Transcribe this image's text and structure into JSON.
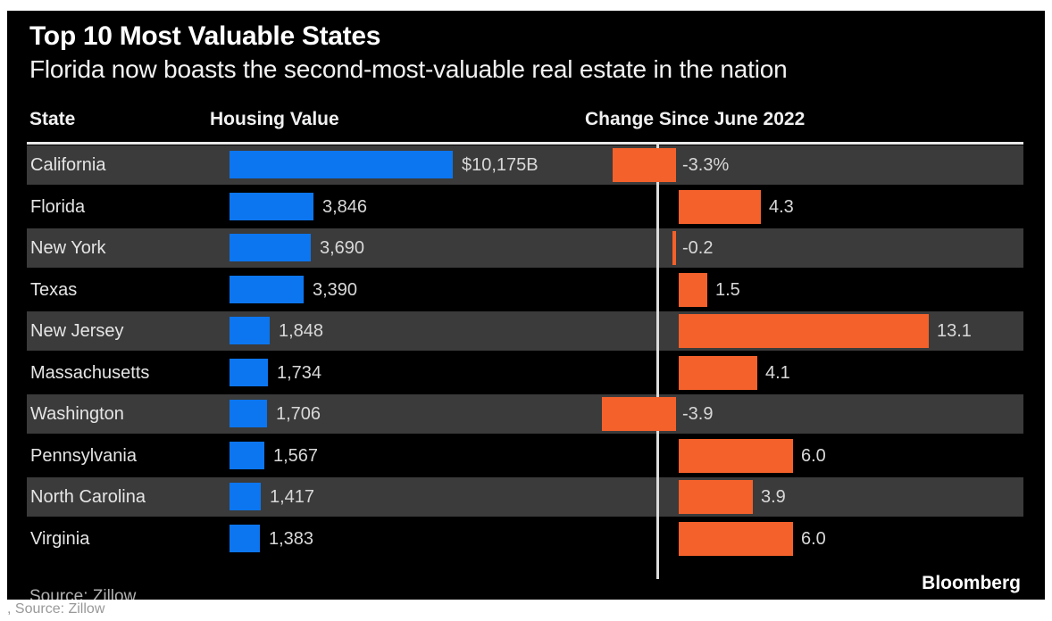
{
  "title": "Top 10 Most Valuable States",
  "subtitle": "Florida now boasts the second-most-valuable real estate in the nation",
  "columns": {
    "state": "State",
    "housing": "Housing Value",
    "change": "Change Since June 2022"
  },
  "source": "Source: Zillow",
  "brand": "Bloomberg",
  "caption": ", Source: Zillow",
  "colors": {
    "background": "#000000",
    "row_alt": "#3b3b3b",
    "housing_bar": "#0b76f0",
    "change_bar": "#f4612b",
    "separator": "#e8e8e8",
    "text": "#e5e5e5"
  },
  "chart_data": {
    "type": "bar",
    "orientation": "horizontal",
    "title": "Top 10 Most Valuable States",
    "subtitle": "Florida now boasts the second-most-valuable real estate in the nation",
    "categories": [
      "California",
      "Florida",
      "New York",
      "Texas",
      "New Jersey",
      "Massachusetts",
      "Washington",
      "Pennsylvania",
      "North Carolina",
      "Virginia"
    ],
    "series": [
      {
        "name": "Housing Value",
        "values": [
          10175,
          3846,
          3690,
          3390,
          1848,
          1734,
          1706,
          1567,
          1417,
          1383
        ],
        "labels": [
          "$10,175B",
          "3,846",
          "3,690",
          "3,390",
          "1,848",
          "1,734",
          "1,706",
          "1,567",
          "1,417",
          "1,383"
        ]
      },
      {
        "name": "Change Since June 2022",
        "values": [
          -3.3,
          4.3,
          -0.2,
          1.5,
          13.1,
          4.1,
          -3.9,
          6.0,
          3.9,
          6.0
        ],
        "labels": [
          "-3.3%",
          "4.3",
          "-0.2",
          "1.5",
          "13.1",
          "4.1",
          "-3.9",
          "6.0",
          "3.9",
          "6.0"
        ]
      }
    ],
    "legend": "none",
    "grid": "off",
    "zero_baseline_column": "Change Since June 2022"
  }
}
